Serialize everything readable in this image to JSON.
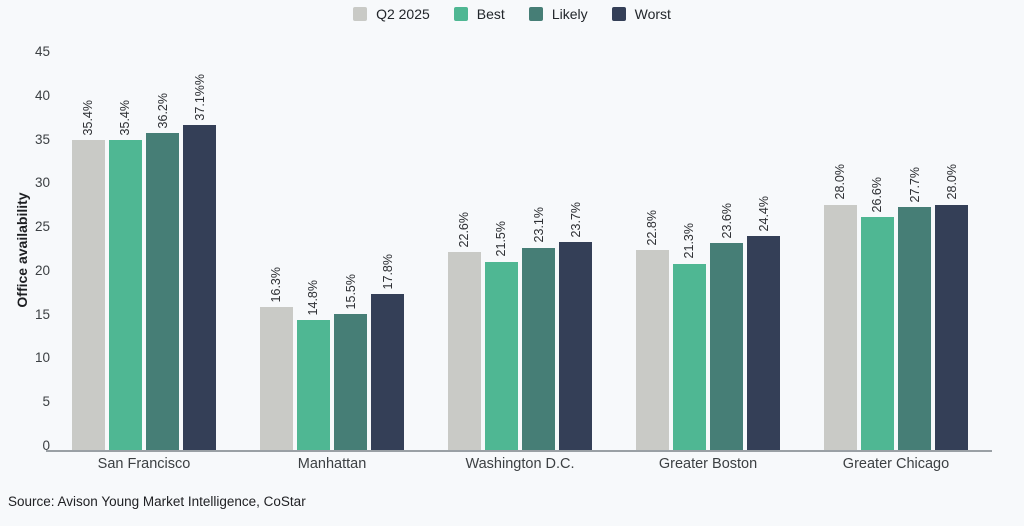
{
  "source": "Source: Avison Young Market Intelligence, CoStar",
  "chart_data": {
    "type": "bar",
    "title": "",
    "xlabel": "",
    "ylabel": "Office availability",
    "ylim": [
      0,
      45
    ],
    "yticks": [
      0,
      5,
      10,
      15,
      20,
      25,
      30,
      35,
      40,
      45
    ],
    "grid": false,
    "legend_position": "top",
    "background_color": "#f7f9fb",
    "axis_line_color": "#9aa0a5",
    "categories": [
      "San Francisco",
      "Manhattan",
      "Washington D.C.",
      "Greater Boston",
      "Greater Chicago"
    ],
    "series": [
      {
        "name": "Q2 2025",
        "color": "#c9cac6",
        "values": [
          35.4,
          16.3,
          22.6,
          22.8,
          28.0
        ],
        "labels": [
          "35.4%",
          "16.3%",
          "22.6%",
          "22.8%",
          "28.0%"
        ]
      },
      {
        "name": "Best",
        "color": "#4fb793",
        "values": [
          35.4,
          14.8,
          21.5,
          21.3,
          26.6
        ],
        "labels": [
          "35.4%",
          "14.8%",
          "21.5%",
          "21.3%",
          "26.6%"
        ]
      },
      {
        "name": "Likely",
        "color": "#467e76",
        "values": [
          36.2,
          15.5,
          23.1,
          23.6,
          27.7
        ],
        "labels": [
          "36.2%",
          "15.5%",
          "23.1%",
          "23.6%",
          "27.7%"
        ]
      },
      {
        "name": "Worst",
        "color": "#343f57",
        "values": [
          37.1,
          17.8,
          23.7,
          24.4,
          28.0
        ],
        "labels": [
          "37.1%%",
          "17.8%",
          "23.7%",
          "24.4%",
          "28.0%"
        ]
      }
    ]
  }
}
